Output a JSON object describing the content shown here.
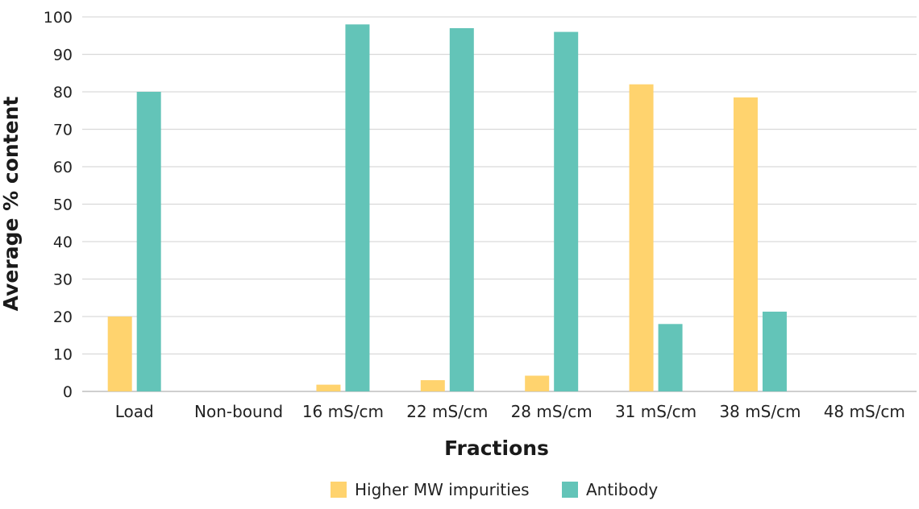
{
  "chart_data": {
    "type": "bar",
    "title": "",
    "xlabel": "Fractions",
    "ylabel": "Average % content",
    "ylim": [
      0,
      100
    ],
    "yticks": [
      0,
      10,
      20,
      30,
      40,
      50,
      60,
      70,
      80,
      90,
      100
    ],
    "grid": true,
    "legend_position": "bottom",
    "categories": [
      "Load",
      "Non-bound",
      "16 mS/cm",
      "22 mS/cm",
      "28 mS/cm",
      "31 mS/cm",
      "38 mS/cm",
      "48 mS/cm"
    ],
    "series": [
      {
        "name": "Higher MW impurities",
        "color": "#FFD36E",
        "values": [
          20,
          0,
          1.8,
          3,
          4.2,
          82,
          78.5,
          0
        ]
      },
      {
        "name": "Antibody",
        "color": "#63C4B8",
        "values": [
          80,
          0,
          98,
          97,
          96,
          18,
          21.3,
          0
        ]
      }
    ]
  }
}
